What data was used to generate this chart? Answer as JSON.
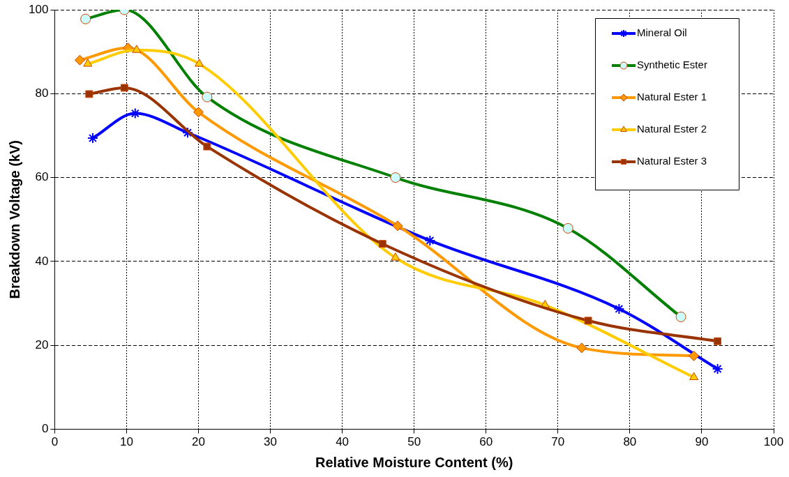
{
  "chart_data": {
    "type": "line",
    "xlabel": "Relative Moisture Content (%)",
    "ylabel": "Breakdown Voltage (kV)",
    "xlim": [
      0,
      100
    ],
    "xticks": [
      0,
      10,
      20,
      30,
      40,
      50,
      60,
      70,
      80,
      90,
      100
    ],
    "ylim": [
      0,
      100
    ],
    "yticks": [
      0,
      20,
      40,
      60,
      80,
      100
    ],
    "grid": true,
    "legend": "top right",
    "line_style": "solid",
    "series": [
      {
        "name": "Mineral Oil",
        "color": "#0000ff",
        "marker": "cross",
        "x": [
          5.3,
          11.2,
          18.5,
          52.2,
          78.5,
          92.2
        ],
        "values": [
          69.4,
          75.3,
          70.7,
          45.0,
          28.7,
          14.4
        ]
      },
      {
        "name": "Synthetic Ester",
        "color": "#008000",
        "marker": "circle",
        "x": [
          4.3,
          9.7,
          21.2,
          47.4,
          71.4,
          87.1
        ],
        "values": [
          97.8,
          100,
          79.2,
          60.0,
          47.9,
          26.8
        ]
      },
      {
        "name": "Natural Ester 1",
        "color": "#ff9900",
        "marker": "diamond",
        "x": [
          3.5,
          10.2,
          20.0,
          47.7,
          73.3,
          88.9
        ],
        "values": [
          88.0,
          90.9,
          75.6,
          48.5,
          19.4,
          17.5
        ]
      },
      {
        "name": "Natural Ester 2",
        "color": "#ffcc00",
        "marker": "triangle",
        "x": [
          4.6,
          11.4,
          20.1,
          47.4,
          68.2,
          88.9
        ],
        "values": [
          87.1,
          90.4,
          87.1,
          40.9,
          29.6,
          12.4
        ]
      },
      {
        "name": "Natural Ester 3",
        "color": "#993300",
        "marker": "square",
        "x": [
          4.8,
          9.7,
          21.2,
          45.6,
          74.2,
          92.2
        ],
        "values": [
          79.9,
          81.4,
          67.4,
          44.2,
          25.9,
          21.0
        ]
      }
    ]
  }
}
